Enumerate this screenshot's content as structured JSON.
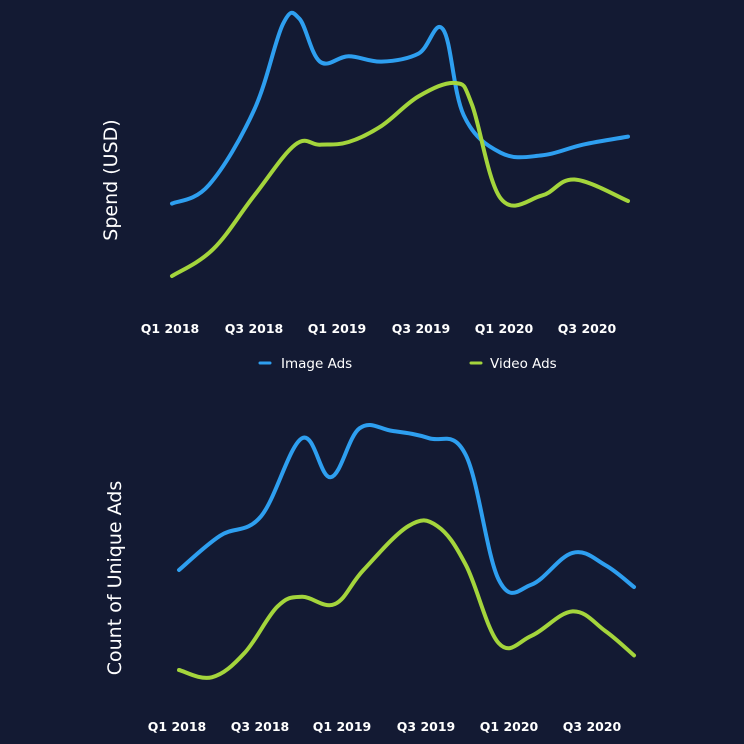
{
  "colors": {
    "background": "#131a33",
    "image_ads": "#2e9ff0",
    "video_ads": "#a4d53c",
    "text": "#ffffff"
  },
  "legend": {
    "placement": "between-charts",
    "items": [
      {
        "label": "Image Ads",
        "color": "#2e9ff0"
      },
      {
        "label": "Video Ads",
        "color": "#a4d53c"
      }
    ]
  },
  "chart_data": [
    {
      "type": "line",
      "ylabel": "Spend (USD)",
      "xlabel": "",
      "grid": false,
      "x_tick_labels": [
        "Q1 2018",
        "Q3 2018",
        "Q1 2019",
        "Q3 2019",
        "Q1 2020",
        "Q3 2020"
      ],
      "x_range": [
        0,
        11.1
      ],
      "ylim": [
        0,
        100
      ],
      "series": [
        {
          "name": "Image Ads",
          "color": "#2e9ff0",
          "x": [
            0,
            0.9,
            2.0,
            2.7,
            3.1,
            3.6,
            4.3,
            5.1,
            6.0,
            6.6,
            7.1,
            8.0,
            9.0,
            10.0,
            11.1
          ],
          "values": [
            27,
            34,
            62,
            94,
            96,
            80,
            82,
            80,
            83,
            92,
            60,
            46,
            45,
            49,
            52
          ]
        },
        {
          "name": "Video Ads",
          "color": "#a4d53c",
          "x": [
            0,
            1.0,
            2.0,
            3.0,
            3.6,
            4.3,
            5.1,
            6.0,
            6.9,
            7.3,
            8.0,
            9.0,
            9.8,
            11.1
          ],
          "values": [
            0,
            10,
            30,
            49,
            49,
            50,
            56,
            67,
            72,
            64,
            29,
            30,
            36,
            28
          ]
        }
      ]
    },
    {
      "type": "line",
      "ylabel": "Count of Unique Ads",
      "xlabel": "",
      "grid": false,
      "x_tick_labels": [
        "Q1 2018",
        "Q3 2018",
        "Q1 2019",
        "Q3 2019",
        "Q1 2020",
        "Q3 2020"
      ],
      "x_range": [
        0,
        11.1
      ],
      "ylim": [
        0,
        100
      ],
      "series": [
        {
          "name": "Image Ads",
          "color": "#2e9ff0",
          "x": [
            0,
            1.0,
            2.0,
            3.0,
            3.7,
            4.4,
            5.2,
            6.1,
            7.0,
            7.8,
            8.6,
            9.6,
            10.4,
            11.1
          ],
          "values": [
            41,
            55,
            63,
            95,
            79,
            99,
            98,
            95,
            88,
            37,
            35,
            48,
            43,
            34
          ]
        },
        {
          "name": "Video Ads",
          "color": "#a4d53c",
          "x": [
            0,
            0.8,
            1.6,
            2.4,
            3.0,
            3.8,
            4.5,
            5.6,
            6.3,
            7.0,
            7.8,
            8.6,
            9.6,
            10.4,
            11.1
          ],
          "values": [
            0,
            -3,
            7,
            26,
            30,
            27,
            41,
            59,
            59,
            43,
            11,
            14,
            24,
            16,
            6
          ]
        }
      ]
    }
  ]
}
